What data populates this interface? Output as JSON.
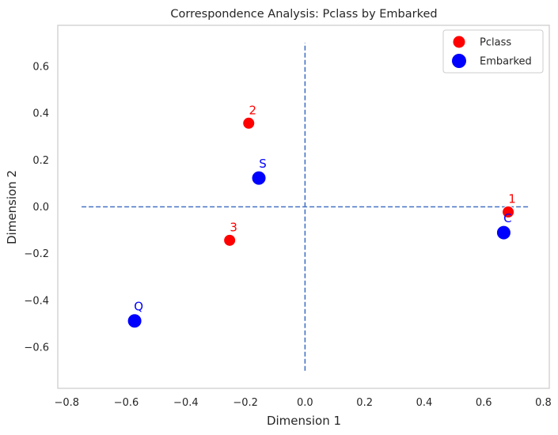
{
  "chart_data": {
    "type": "scatter",
    "title": "Correspondence Analysis: Pclass by Embarked",
    "xlabel": "Dimension 1",
    "ylabel": "Dimension 2",
    "xlim": [
      -0.83,
      0.82
    ],
    "ylim": [
      -0.775,
      0.775
    ],
    "xticks": [
      -0.8,
      -0.6,
      -0.4,
      -0.2,
      0.0,
      0.2,
      0.4,
      0.6,
      0.8
    ],
    "xtick_labels": [
      "−0.8",
      "−0.6",
      "−0.4",
      "−0.2",
      "0.0",
      "0.2",
      "0.4",
      "0.6",
      "0.8"
    ],
    "yticks": [
      -0.6,
      -0.4,
      -0.2,
      0.0,
      0.2,
      0.4,
      0.6
    ],
    "ytick_labels": [
      "−0.6",
      "−0.4",
      "−0.2",
      "0.0",
      "0.2",
      "0.4",
      "0.6"
    ],
    "grid": false,
    "legend_position": "top-right",
    "reference_lines": {
      "horizontal": {
        "y": 0,
        "x_from": -0.75,
        "x_to": 0.75
      },
      "vertical": {
        "x": 0,
        "y_from": -0.7,
        "y_to": 0.7
      },
      "color": "#4472c4",
      "style": "dashed"
    },
    "series": [
      {
        "name": "Pclass",
        "color": "#ff0000",
        "points": [
          {
            "label": "1",
            "x": 0.682,
            "y": -0.022
          },
          {
            "label": "2",
            "x": -0.189,
            "y": 0.357
          },
          {
            "label": "3",
            "x": -0.253,
            "y": -0.143
          }
        ]
      },
      {
        "name": "Embarked",
        "color": "#0000ff",
        "points": [
          {
            "label": "C",
            "x": 0.667,
            "y": -0.11
          },
          {
            "label": "S",
            "x": -0.155,
            "y": 0.123
          },
          {
            "label": "Q",
            "x": -0.572,
            "y": -0.487
          }
        ]
      }
    ]
  }
}
